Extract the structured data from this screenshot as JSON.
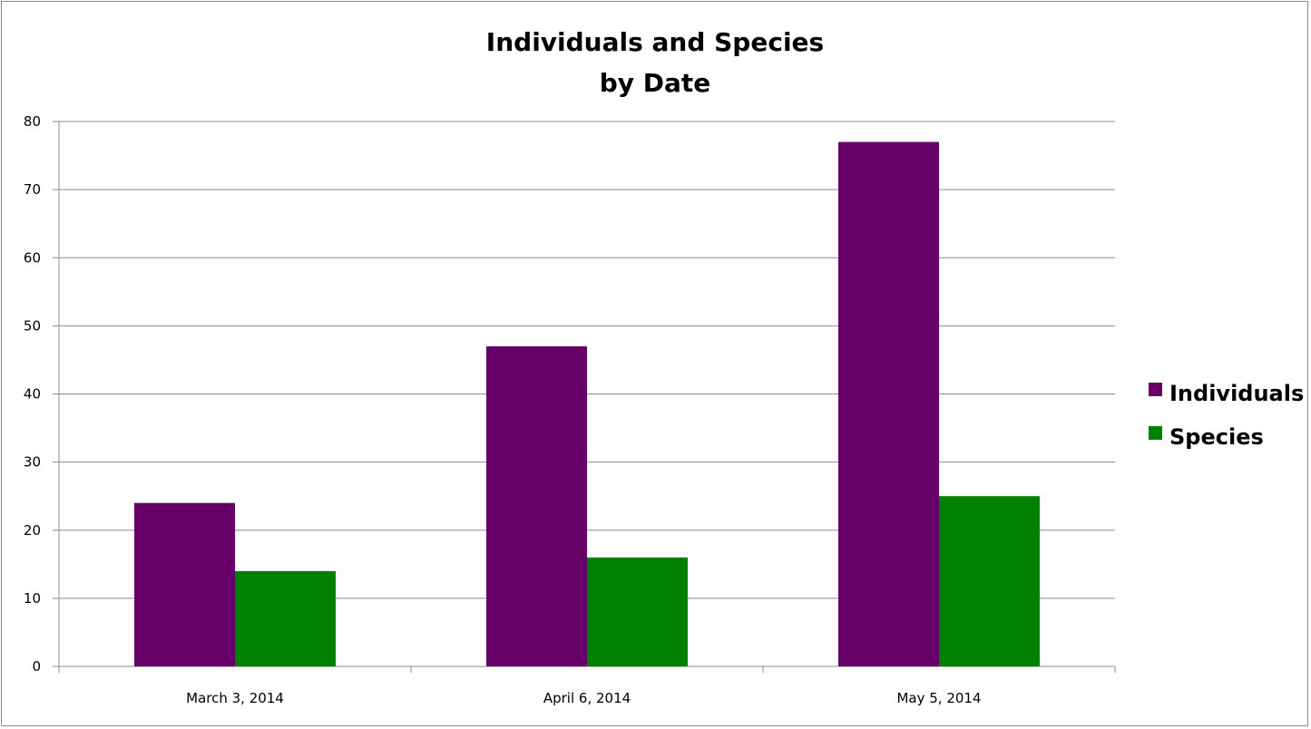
{
  "chart_data": {
    "type": "bar",
    "title_lines": [
      "Individuals and Species",
      "by Date"
    ],
    "categories": [
      "March 3, 2014",
      "April 6, 2014",
      "May 5, 2014"
    ],
    "series": [
      {
        "name": "Individuals",
        "values": [
          24,
          47,
          77
        ],
        "color": "#660066"
      },
      {
        "name": "Species",
        "values": [
          14,
          16,
          25
        ],
        "color": "#008000"
      }
    ],
    "ylim": [
      0,
      80
    ],
    "yticks": [
      0,
      10,
      20,
      30,
      40,
      50,
      60,
      70,
      80
    ],
    "grid": true,
    "legend": "right"
  }
}
